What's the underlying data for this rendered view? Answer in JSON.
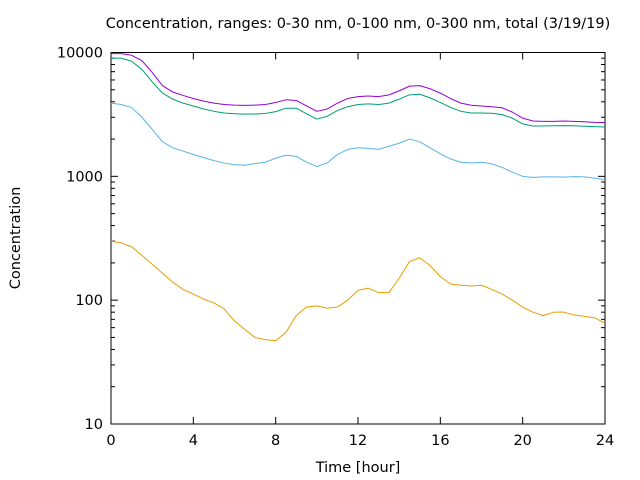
{
  "chart_data": {
    "type": "line",
    "title": "Concentration, ranges: 0-30 nm, 0-100 nm, 0-300 nm, total (3/19/19)",
    "xlabel": "Time [hour]",
    "ylabel": "Concentration",
    "xlim": [
      0,
      24
    ],
    "ylim": [
      10,
      10000
    ],
    "yscale": "log",
    "grid": false,
    "legend": "none",
    "x_ticks": [
      "0",
      "4",
      "8",
      "12",
      "16",
      "20",
      "24"
    ],
    "y_ticks": [
      "10",
      "100",
      "1000",
      "10000"
    ],
    "x": [
      0,
      0.5,
      1,
      1.5,
      2,
      2.5,
      3,
      3.5,
      4,
      4.5,
      5,
      5.5,
      6,
      6.5,
      7,
      7.5,
      8,
      8.5,
      9,
      9.5,
      10,
      10.5,
      11,
      11.5,
      12,
      12.5,
      13,
      13.5,
      14,
      14.5,
      15,
      15.5,
      16,
      16.5,
      17,
      17.5,
      18,
      18.5,
      19,
      19.5,
      20,
      20.5,
      21,
      21.5,
      22,
      22.5,
      23,
      23.5,
      24
    ],
    "series": [
      {
        "color": "#e69f00",
        "values": [
          300,
          290,
          270,
          230,
          195,
          165,
          140,
          122,
          112,
          102,
          95,
          85,
          68,
          58,
          50,
          48,
          47,
          55,
          75,
          88,
          90,
          86,
          88,
          100,
          120,
          125,
          115,
          115,
          150,
          205,
          220,
          190,
          155,
          135,
          132,
          130,
          132,
          122,
          112,
          100,
          88,
          80,
          75,
          80,
          80,
          76,
          74,
          72,
          65
        ]
      },
      {
        "color": "#56b4e9",
        "values": [
          3900,
          3800,
          3600,
          3000,
          2400,
          1900,
          1700,
          1600,
          1500,
          1420,
          1340,
          1280,
          1240,
          1230,
          1270,
          1300,
          1400,
          1480,
          1450,
          1300,
          1200,
          1280,
          1500,
          1650,
          1700,
          1680,
          1650,
          1750,
          1850,
          2000,
          1900,
          1700,
          1520,
          1380,
          1300,
          1280,
          1300,
          1260,
          1180,
          1080,
          1000,
          980,
          990,
          990,
          985,
          995,
          990,
          965,
          940
        ]
      },
      {
        "color": "#009e73",
        "values": [
          9000,
          9000,
          8500,
          7300,
          5800,
          4700,
          4200,
          3900,
          3700,
          3500,
          3350,
          3250,
          3200,
          3180,
          3190,
          3220,
          3330,
          3550,
          3550,
          3200,
          2900,
          3050,
          3400,
          3650,
          3800,
          3850,
          3800,
          3900,
          4200,
          4550,
          4600,
          4300,
          3950,
          3600,
          3350,
          3250,
          3250,
          3230,
          3150,
          2950,
          2650,
          2550,
          2550,
          2560,
          2570,
          2560,
          2540,
          2520,
          2500
        ]
      },
      {
        "color": "#9400d3",
        "values": [
          9800,
          9800,
          9500,
          8600,
          6900,
          5400,
          4800,
          4500,
          4250,
          4050,
          3900,
          3800,
          3760,
          3740,
          3760,
          3800,
          3950,
          4150,
          4100,
          3700,
          3350,
          3500,
          3900,
          4250,
          4400,
          4450,
          4400,
          4550,
          4900,
          5350,
          5400,
          5100,
          4700,
          4250,
          3900,
          3750,
          3700,
          3650,
          3580,
          3300,
          2950,
          2800,
          2780,
          2780,
          2800,
          2780,
          2760,
          2730,
          2720
        ]
      }
    ]
  }
}
